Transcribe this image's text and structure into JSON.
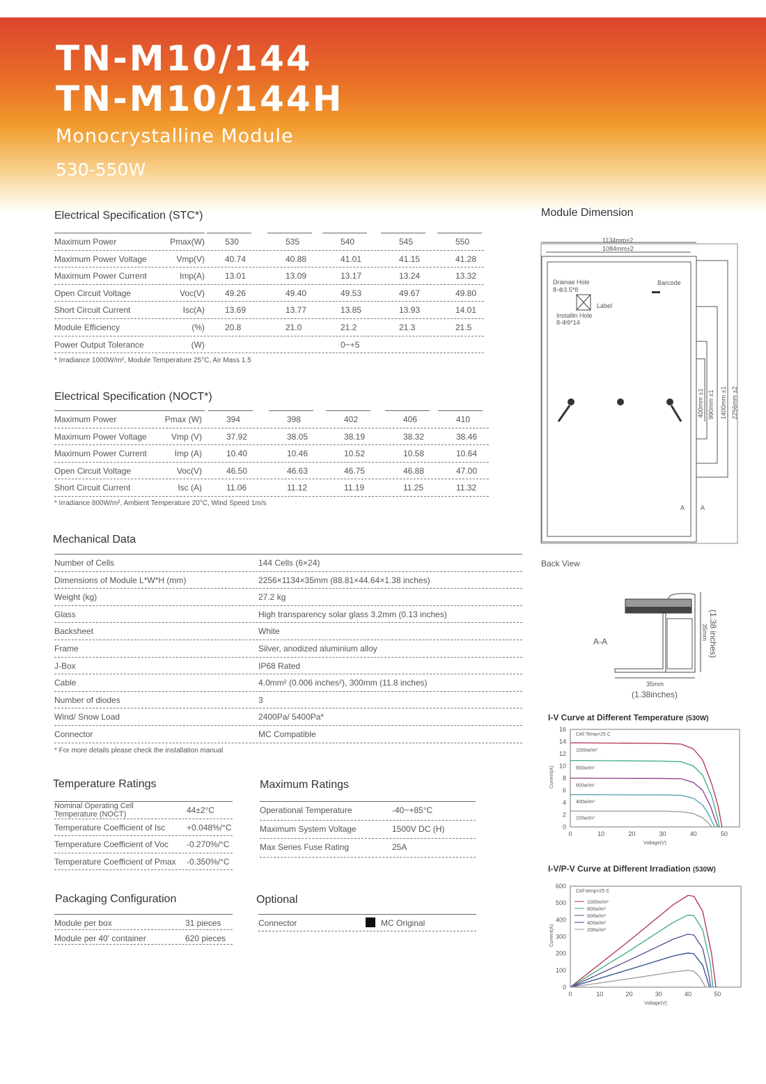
{
  "header": {
    "model1": "TN-M10/144",
    "model2": "TN-M10/144H",
    "subtitle": "Monocrystalline Module",
    "power_range": "530-550W"
  },
  "stc": {
    "title": "Electrical Specification (STC*)",
    "rows": [
      {
        "label": "Maximum Power",
        "unit": "Pmax(W)",
        "values": [
          "530",
          "535",
          "540",
          "545",
          "550"
        ]
      },
      {
        "label": "Maximum Power Voltage",
        "unit": "Vmp(V)",
        "values": [
          "40.74",
          "40.88",
          "41.01",
          "41.15",
          "41.28"
        ]
      },
      {
        "label": "Maximum Power Current",
        "unit": "Imp(A)",
        "values": [
          "13.01",
          "13.09",
          "13.17",
          "13.24",
          "13.32"
        ]
      },
      {
        "label": "Open Circuit Voltage",
        "unit": "Voc(V)",
        "values": [
          "49.26",
          "49.40",
          "49.53",
          "49.67",
          "49.80"
        ]
      },
      {
        "label": "Short Circuit Current",
        "unit": "Isc(A)",
        "values": [
          "13.69",
          "13.77",
          "13.85",
          "13.93",
          "14.01"
        ]
      },
      {
        "label": "Module Efficiency",
        "unit": "(%)",
        "values": [
          "20.8",
          "21.0",
          "21.2",
          "21.3",
          "21.5"
        ]
      },
      {
        "label": "Power Output Tolerance",
        "unit": "(W)",
        "values": [
          "",
          "",
          "0~+5",
          "",
          ""
        ]
      }
    ],
    "note": "* Irradiance 1000W/m², Module Temperature 25°C, Air Mass 1.5"
  },
  "noct": {
    "title": "Electrical Specification (NOCT*)",
    "rows": [
      {
        "label": "Maximum Power",
        "unit": "Pmax (W)",
        "values": [
          "394",
          "398",
          "402",
          "406",
          "410"
        ]
      },
      {
        "label": "Maximum Power Voltage",
        "unit": "Vmp (V)",
        "values": [
          "37.92",
          "38.05",
          "38.19",
          "38.32",
          "38.46"
        ]
      },
      {
        "label": "Maximum Power Current",
        "unit": "Imp (A)",
        "values": [
          "10.40",
          "10.46",
          "10.52",
          "10.58",
          "10.64"
        ]
      },
      {
        "label": "Open Circuit Voltage",
        "unit": "Voc(V)",
        "values": [
          "46.50",
          "46.63",
          "46.75",
          "46.88",
          "47.00"
        ]
      },
      {
        "label": "Short Circuit Current",
        "unit": "Isc (A)",
        "values": [
          "11.06",
          "11.12",
          "11.19",
          "11.25",
          "11.32"
        ]
      }
    ],
    "note": "* Irradiance 800W/m², Ambient Temperature 20°C, Wind Speed 1m/s"
  },
  "mechanical": {
    "title": "Mechanical Data",
    "rows": [
      {
        "label": "Number of Cells",
        "value": "144 Cells (6×24)"
      },
      {
        "label": "Dimensions of Module L*W*H (mm)",
        "value": "2256×1134×35mm (88.81×44.64×1.38 inches)"
      },
      {
        "label": "Weight (kg)",
        "value": "27.2 kg"
      },
      {
        "label": "Glass",
        "value": "High transparency solar glass 3.2mm (0.13 inches)"
      },
      {
        "label": "Backsheet",
        "value": "White"
      },
      {
        "label": "Frame",
        "value": "Silver, anodized aluminium alloy"
      },
      {
        "label": "J-Box",
        "value": "IP68 Rated"
      },
      {
        "label": "Cable",
        "value": "4.0mm² (0.006 inches²), 300mm (11.8 inches)"
      },
      {
        "label": "Number of diodes",
        "value": "3"
      },
      {
        "label": "Wind/ Snow Load",
        "value": "2400Pa/ 5400Pa*"
      },
      {
        "label": "Connector",
        "value": "MC Compatible"
      }
    ],
    "note": "* For more details please check the installation manual"
  },
  "temperature": {
    "title": "Temperature Ratings",
    "rows": [
      {
        "label": "Nominal  Operating Cell Temperature (NOCT)",
        "value": "44±2°C"
      },
      {
        "label": "Temperature Coefficient of Isc",
        "value": "+0.048%/°C"
      },
      {
        "label": "Temperature Coefficient of Voc",
        "value": "-0.270%/°C"
      },
      {
        "label": "Temperature Coefficient of Pmax",
        "value": "-0.350%/°C"
      }
    ]
  },
  "maximum": {
    "title": "Maximum Ratings",
    "rows": [
      {
        "label": "Operational Temperature",
        "value": "-40~+85°C"
      },
      {
        "label": "Maximum System Voltage",
        "value": "1500V DC (H)"
      },
      {
        "label": "Max Series Fuse Rating",
        "value": "25A"
      }
    ]
  },
  "packaging": {
    "title": "Packaging Configuration",
    "rows": [
      {
        "label": "Module per box",
        "value": "31 pieces"
      },
      {
        "label": "Module per 40' container",
        "value": "620 pieces"
      }
    ]
  },
  "optional": {
    "title": "Optional",
    "rows": [
      {
        "label": "Connector",
        "value": "MC Original"
      }
    ]
  },
  "dimension": {
    "title": "Module Dimension",
    "width_outer": "1134mm±2",
    "width_inner": "1084mm±2",
    "drain": "Drainae Hole",
    "drain_spec": "8-Φ3.5*8",
    "install": "Installin Hole",
    "install_spec": "8-Φ9*14",
    "label": "Label",
    "barcode": "Barcode",
    "d1": "400mm ±1",
    "d2": "990mm ±1",
    "d3": "1400mm ±1",
    "d4": "2256mm ±2",
    "section_marker": "A",
    "back_view": "Back View",
    "section": "A-A",
    "depth_mm": "35mm",
    "depth_in": "(1.38 inches)",
    "width_mm": "35mm",
    "width_in": "(1.38inches)"
  },
  "chart_data": [
    {
      "type": "line",
      "title": "I-V Curve at Different Temperature",
      "title_suffix": "(530W)",
      "annotation": "Cell Temp=25 C",
      "xlabel": "Voltage(V)",
      "ylabel": "Current(A)",
      "xlim": [
        0,
        55
      ],
      "ylim": [
        0,
        16
      ],
      "xticks": [
        0,
        10,
        20,
        30,
        40,
        50
      ],
      "yticks": [
        0,
        2,
        4,
        6,
        8,
        10,
        12,
        14,
        16
      ],
      "grid": false,
      "series": [
        {
          "name": "1000w/m²",
          "color": "#b0304a",
          "points": [
            [
              0,
              13.8
            ],
            [
              30,
              13.7
            ],
            [
              36,
              13.6
            ],
            [
              40,
              12.8
            ],
            [
              43,
              11
            ],
            [
              46,
              7
            ],
            [
              48,
              3.5
            ],
            [
              49.3,
              0
            ]
          ]
        },
        {
          "name": "800w/m²",
          "color": "#3aa888",
          "points": [
            [
              0,
              10.9
            ],
            [
              30,
              10.8
            ],
            [
              36,
              10.7
            ],
            [
              40,
              10
            ],
            [
              43,
              8.5
            ],
            [
              46,
              5
            ],
            [
              47.6,
              2
            ],
            [
              48.5,
              0
            ]
          ]
        },
        {
          "name": "600w/m²",
          "color": "#8a3a8a",
          "points": [
            [
              0,
              8
            ],
            [
              30,
              7.95
            ],
            [
              36,
              7.9
            ],
            [
              40,
              7.3
            ],
            [
              43,
              6
            ],
            [
              45.5,
              3.5
            ],
            [
              47,
              1.3
            ],
            [
              48,
              0
            ]
          ]
        },
        {
          "name": "400w/m²",
          "color": "#4aa0b0",
          "points": [
            [
              0,
              5.3
            ],
            [
              30,
              5.25
            ],
            [
              36,
              5.2
            ],
            [
              40,
              4.7
            ],
            [
              43,
              3.6
            ],
            [
              45,
              2
            ],
            [
              46.3,
              0.6
            ],
            [
              47,
              0
            ]
          ]
        },
        {
          "name": "200w/m²",
          "color": "#999999",
          "points": [
            [
              0,
              2.6
            ],
            [
              30,
              2.6
            ],
            [
              36,
              2.5
            ],
            [
              40,
              2.2
            ],
            [
              43,
              1.5
            ],
            [
              45,
              0.6
            ],
            [
              46,
              0
            ]
          ]
        }
      ]
    },
    {
      "type": "line",
      "title": "I-V/P-V Curve at Different Irradiation",
      "title_suffix": "(530W)",
      "annotation": "Cell temp=25 C",
      "xlabel": "Voltage(V)",
      "ylabel": "Current(A)",
      "xlim": [
        0,
        58
      ],
      "ylim": [
        0,
        600
      ],
      "xticks": [
        0,
        10,
        20,
        30,
        40,
        50
      ],
      "yticks": [
        0,
        100,
        200,
        300,
        400,
        500,
        600
      ],
      "grid": false,
      "legend": "top-left",
      "series": [
        {
          "name": "1000w/m²",
          "color": "#b0304a",
          "points": [
            [
              0,
              0
            ],
            [
              20,
              275
            ],
            [
              35,
              490
            ],
            [
              40,
              545
            ],
            [
              42,
              540
            ],
            [
              45,
              450
            ],
            [
              48,
              200
            ],
            [
              49.5,
              0
            ]
          ]
        },
        {
          "name": "800w/m²",
          "color": "#3aa888",
          "points": [
            [
              0,
              0
            ],
            [
              20,
              215
            ],
            [
              35,
              385
            ],
            [
              40,
              428
            ],
            [
              42,
              425
            ],
            [
              45,
              340
            ],
            [
              47.5,
              150
            ],
            [
              48.5,
              0
            ]
          ]
        },
        {
          "name": "600w/m²",
          "color": "#5a4a8a",
          "points": [
            [
              0,
              0
            ],
            [
              20,
              160
            ],
            [
              35,
              285
            ],
            [
              40,
              315
            ],
            [
              42,
              310
            ],
            [
              45,
              230
            ],
            [
              47,
              80
            ],
            [
              47.8,
              0
            ]
          ]
        },
        {
          "name": "400w/m²",
          "color": "#2a4a8a",
          "points": [
            [
              0,
              0
            ],
            [
              20,
              105
            ],
            [
              35,
              185
            ],
            [
              40,
              203
            ],
            [
              42,
              198
            ],
            [
              45,
              130
            ],
            [
              46.8,
              30
            ],
            [
              47.3,
              0
            ]
          ]
        },
        {
          "name": "200w/m²",
          "color": "#999999",
          "points": [
            [
              0,
              0
            ],
            [
              20,
              50
            ],
            [
              35,
              90
            ],
            [
              40,
              100
            ],
            [
              42,
              95
            ],
            [
              44,
              60
            ],
            [
              45.5,
              15
            ],
            [
              46,
              0
            ]
          ]
        }
      ]
    }
  ]
}
